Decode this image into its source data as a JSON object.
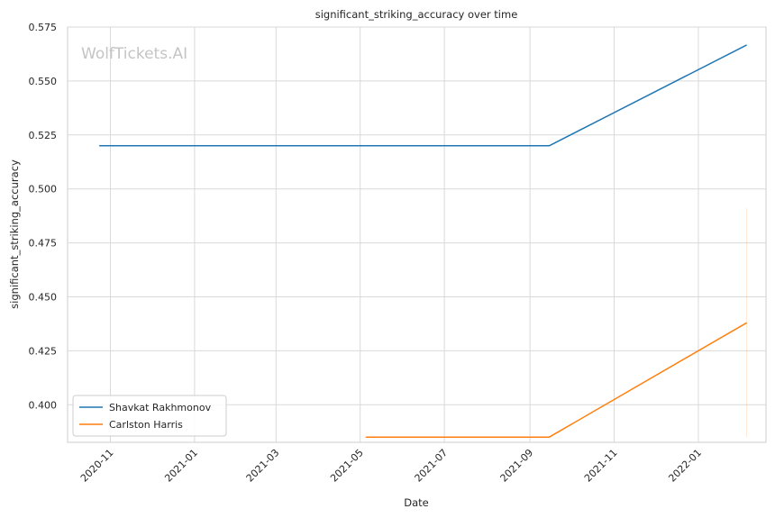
{
  "chart_data": {
    "type": "line",
    "title": "significant_striking_accuracy over time",
    "xlabel": "Date",
    "ylabel": "significant_striking_accuracy",
    "watermark": "WolfTickets.AI",
    "x_axis_type": "date",
    "xlim": [
      "2020-10-01",
      "2022-02-19"
    ],
    "ylim": [
      0.3826,
      0.575
    ],
    "x_ticks": [
      "2020-11",
      "2021-01",
      "2021-03",
      "2021-05",
      "2021-07",
      "2021-09",
      "2021-11",
      "2022-01"
    ],
    "y_ticks": [
      0.4,
      0.425,
      0.45,
      0.475,
      0.5,
      0.525,
      0.55,
      0.575
    ],
    "y_tick_labels": [
      "0.400",
      "0.425",
      "0.450",
      "0.475",
      "0.500",
      "0.525",
      "0.550",
      "0.575"
    ],
    "grid": true,
    "legend_position": "lower-left",
    "series": [
      {
        "name": "Shavkat Rakhmonov",
        "color": "#1f77b4",
        "points": [
          {
            "x": "2020-10-24",
            "y": 0.52
          },
          {
            "x": "2021-09-15",
            "y": 0.52
          },
          {
            "x": "2022-02-05",
            "y": 0.5667
          }
        ]
      },
      {
        "name": "Carlston Harris",
        "color": "#ff7f0e",
        "points": [
          {
            "x": "2021-05-05",
            "y": 0.385
          },
          {
            "x": "2021-09-15",
            "y": 0.385
          },
          {
            "x": "2022-02-05",
            "y": 0.438
          }
        ]
      }
    ],
    "annotations": [
      {
        "type": "vertical-band",
        "x": "2022-02-05",
        "y_range": [
          0.385,
          0.491
        ],
        "color": "#ff7f0e"
      }
    ]
  }
}
